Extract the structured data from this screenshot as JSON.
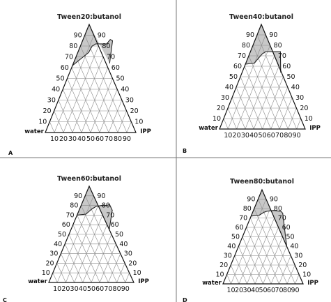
{
  "colors": {
    "region_fill": "#c8c8c8",
    "grid": "#8a8a8a",
    "frame": "#111111",
    "divider": "#777777"
  },
  "vertices": {
    "left": "water",
    "right": "IPP"
  },
  "ticks": {
    "bottom": [
      "10",
      "20",
      "30",
      "40",
      "50",
      "60",
      "70",
      "80",
      "90"
    ],
    "left": [
      "90",
      "80",
      "70",
      "60",
      "50",
      "40",
      "30",
      "20",
      "10"
    ],
    "right": [
      "90",
      "80",
      "70",
      "60",
      "50",
      "40",
      "30",
      "20",
      "10"
    ]
  },
  "panels": [
    {
      "label": "A",
      "title": "Tween20:butanol"
    },
    {
      "label": "B",
      "title": "Tween40:butanol"
    },
    {
      "label": "C",
      "title": "Tween60:butanol"
    },
    {
      "label": "D",
      "title": "Tween80:butanol"
    }
  ],
  "chart_data": {
    "type": "ternary",
    "axes": [
      "Tween:butanol",
      "water",
      "IPP"
    ],
    "series": [
      {
        "panel": "A",
        "boundary_surfactant_pct": [
          {
            "ipp": 0,
            "s": 62
          },
          {
            "ipp": 8,
            "s": 70
          },
          {
            "ipp": 12,
            "s": 74
          },
          {
            "ipp": 13,
            "s": 80
          },
          {
            "ipp": 16,
            "s": 82
          },
          {
            "ipp": 20,
            "s": 82
          },
          {
            "ipp": 28,
            "s": 82
          },
          {
            "ipp": 30,
            "s": 86
          },
          {
            "ipp": 33,
            "s": 85
          },
          {
            "ipp": 40,
            "s": 64
          }
        ]
      },
      {
        "panel": "B",
        "boundary_surfactant_pct": [
          {
            "ipp": 0,
            "s": 62
          },
          {
            "ipp": 10,
            "s": 63
          },
          {
            "ipp": 12,
            "s": 67
          },
          {
            "ipp": 15,
            "s": 72
          },
          {
            "ipp": 18,
            "s": 74
          },
          {
            "ipp": 25,
            "s": 74
          },
          {
            "ipp": 35,
            "s": 74
          },
          {
            "ipp": 45,
            "s": 54
          }
        ]
      },
      {
        "panel": "C",
        "boundary_surfactant_pct": [
          {
            "ipp": 0,
            "s": 70
          },
          {
            "ipp": 10,
            "s": 71
          },
          {
            "ipp": 14,
            "s": 76
          },
          {
            "ipp": 18,
            "s": 79
          },
          {
            "ipp": 24,
            "s": 80
          },
          {
            "ipp": 30,
            "s": 80
          },
          {
            "ipp": 33,
            "s": 81
          },
          {
            "ipp": 39,
            "s": 75
          },
          {
            "ipp": 45,
            "s": 55
          }
        ]
      },
      {
        "panel": "D",
        "boundary_surfactant_pct": [
          {
            "ipp": 0,
            "s": 72
          },
          {
            "ipp": 10,
            "s": 73
          },
          {
            "ipp": 14,
            "s": 76
          },
          {
            "ipp": 17,
            "s": 77
          },
          {
            "ipp": 25,
            "s": 78
          },
          {
            "ipp": 35,
            "s": 77
          },
          {
            "ipp": 38,
            "s": 75
          },
          {
            "ipp": 60,
            "s": 40
          }
        ]
      }
    ]
  }
}
